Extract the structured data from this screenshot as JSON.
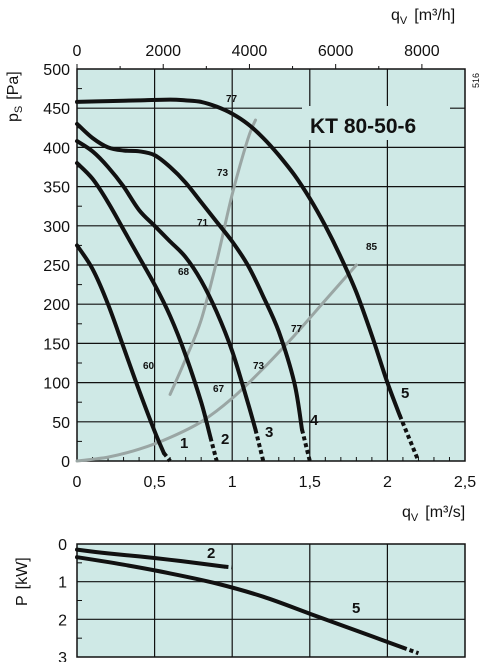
{
  "chart_data": [
    {
      "type": "line",
      "model": "KT  80-50-6",
      "reference": "516",
      "x_axis_bottom": {
        "label": "q",
        "label_sub": "V",
        "unit": "[m³/s]",
        "range": [
          0,
          2.5
        ],
        "ticks": [
          0,
          0.5,
          1,
          1.5,
          2,
          2.5
        ],
        "tick_labels": [
          "0",
          "0,5",
          "1",
          "1,5",
          "2",
          "2,5"
        ]
      },
      "x_axis_top": {
        "label": "q",
        "label_sub": "V",
        "unit": "[m³/h]",
        "range": [
          0,
          9000
        ],
        "ticks": [
          0,
          2000,
          4000,
          6000,
          8000
        ],
        "tick_labels": [
          "0",
          "2000",
          "4000",
          "6000",
          "8000"
        ]
      },
      "y_axis": {
        "label": "p",
        "label_sub": "S",
        "unit": "[Pa]",
        "range": [
          0,
          500
        ],
        "ticks": [
          0,
          50,
          100,
          150,
          200,
          250,
          300,
          350,
          400,
          450,
          500
        ],
        "tick_labels": [
          "0",
          "50",
          "100",
          "150",
          "200",
          "250",
          "300",
          "350",
          "400",
          "450",
          "500"
        ]
      },
      "grid": true,
      "series": [
        {
          "id": "1",
          "label": "1",
          "x": [
            0.0,
            0.1,
            0.2,
            0.3,
            0.4,
            0.5,
            0.56
          ],
          "y": [
            275,
            245,
            200,
            145,
            90,
            38,
            10
          ],
          "dashed_tail": [
            [
              0.56,
              10
            ],
            [
              0.6,
              0
            ]
          ]
        },
        {
          "id": "2",
          "label": "2",
          "x": [
            0.0,
            0.1,
            0.2,
            0.3,
            0.4,
            0.5,
            0.6,
            0.7,
            0.8,
            0.86
          ],
          "y": [
            380,
            360,
            330,
            295,
            260,
            225,
            185,
            135,
            75,
            30
          ],
          "dashed_tail": [
            [
              0.86,
              30
            ],
            [
              0.9,
              0
            ]
          ]
        },
        {
          "id": "3",
          "label": "3",
          "x": [
            0.0,
            0.1,
            0.2,
            0.3,
            0.4,
            0.5,
            0.6,
            0.7,
            0.8,
            0.9,
            1.0,
            1.1,
            1.15
          ],
          "y": [
            408,
            395,
            375,
            350,
            320,
            300,
            280,
            260,
            230,
            190,
            140,
            75,
            40
          ],
          "dashed_tail": [
            [
              1.15,
              40
            ],
            [
              1.2,
              0
            ]
          ]
        },
        {
          "id": "4",
          "label": "4",
          "x": [
            0.0,
            0.1,
            0.2,
            0.3,
            0.4,
            0.5,
            0.6,
            0.7,
            0.8,
            0.9,
            1.0,
            1.1,
            1.2,
            1.3,
            1.4,
            1.45
          ],
          "y": [
            430,
            412,
            400,
            396,
            395,
            390,
            375,
            355,
            330,
            305,
            280,
            250,
            210,
            165,
            100,
            40
          ],
          "dashed_tail": [
            [
              1.45,
              40
            ],
            [
              1.5,
              0
            ]
          ]
        },
        {
          "id": "5",
          "label": "5",
          "x": [
            0.0,
            0.2,
            0.4,
            0.6,
            0.7,
            0.8,
            0.9,
            1.0,
            1.1,
            1.2,
            1.3,
            1.4,
            1.5,
            1.6,
            1.7,
            1.8,
            1.9,
            2.0,
            2.08
          ],
          "y": [
            458,
            459,
            460,
            461,
            460,
            458,
            452,
            443,
            430,
            412,
            390,
            365,
            335,
            300,
            260,
            215,
            160,
            100,
            58
          ],
          "dashed_tail": [
            [
              2.08,
              58
            ],
            [
              2.2,
              0
            ]
          ]
        }
      ],
      "system_curves": [
        {
          "x": [
            0.6,
            0.7,
            0.8,
            0.9,
            1.0,
            1.1,
            1.15
          ],
          "y": [
            85,
            130,
            180,
            255,
            340,
            410,
            435
          ]
        },
        {
          "x": [
            0.0,
            0.2,
            0.4,
            0.6,
            0.8,
            1.0,
            1.2,
            1.4,
            1.6,
            1.8
          ],
          "y": [
            0,
            5,
            15,
            30,
            50,
            80,
            118,
            160,
            205,
            250
          ]
        }
      ],
      "efficiency_labels": [
        "60",
        "67",
        "68",
        "71",
        "73",
        "73",
        "77",
        "77",
        "85"
      ]
    },
    {
      "type": "line",
      "y_axis": {
        "label": "P",
        "unit": "[kW]",
        "range": [
          0,
          3
        ],
        "inverted": true,
        "ticks": [
          0,
          1,
          2,
          3
        ],
        "tick_labels": [
          "0",
          "1",
          "2",
          "3"
        ]
      },
      "x_range": [
        0,
        2.5
      ],
      "grid": true,
      "series": [
        {
          "id": "2",
          "label": "2",
          "x": [
            0.0,
            0.2,
            0.4,
            0.6,
            0.8,
            0.95
          ],
          "y": [
            0.15,
            0.25,
            0.33,
            0.42,
            0.52,
            0.6
          ],
          "dashed_tail": [
            [
              0.95,
              0.6
            ],
            [
              1.0,
              0.62
            ]
          ]
        },
        {
          "id": "5",
          "label": "5",
          "x": [
            0.0,
            0.3,
            0.6,
            0.9,
            1.2,
            1.5,
            1.8,
            2.1
          ],
          "y": [
            0.35,
            0.55,
            0.78,
            1.05,
            1.4,
            1.85,
            2.3,
            2.75
          ],
          "dashed_tail": [
            [
              2.1,
              2.75
            ],
            [
              2.2,
              2.9
            ]
          ]
        }
      ]
    }
  ]
}
